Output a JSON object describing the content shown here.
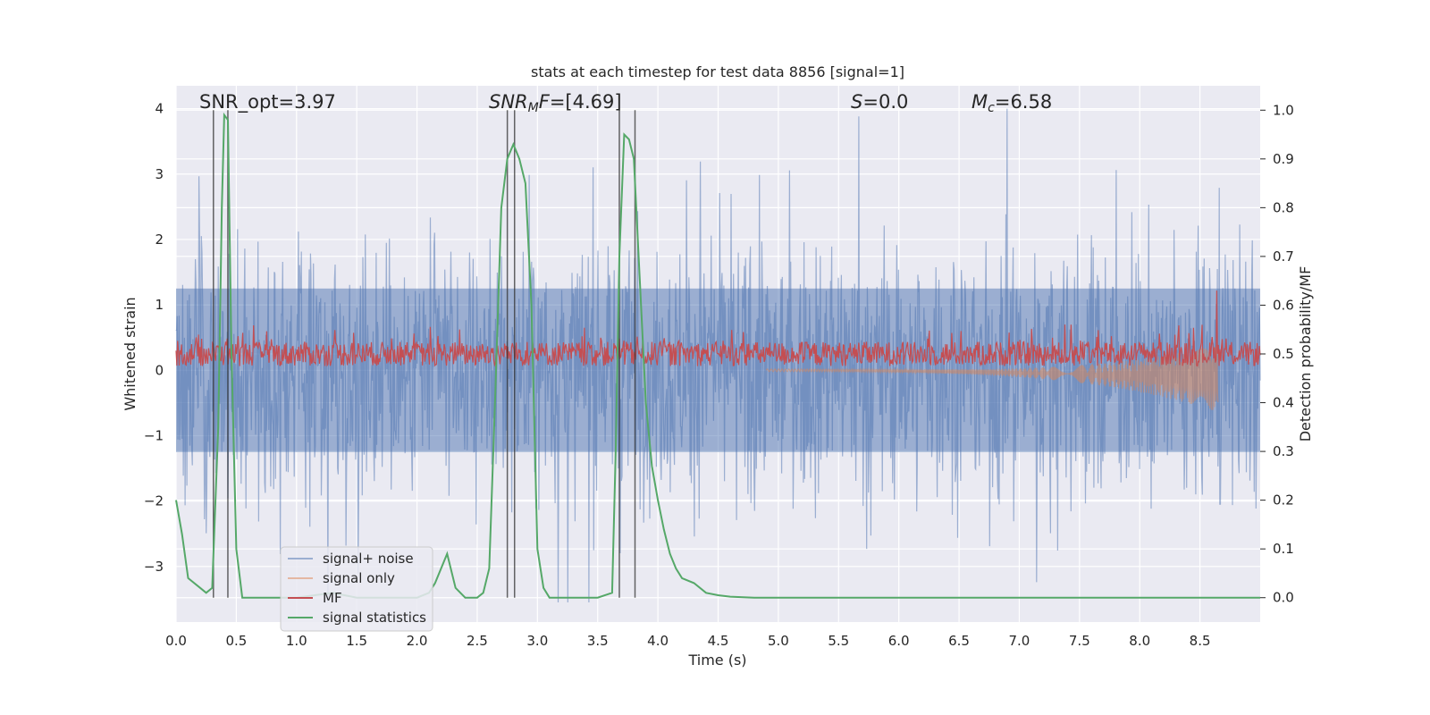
{
  "chart_data": {
    "type": "line",
    "title": "stats at each timestep for test data 8856 [signal=1]",
    "xlabel": "Time (s)",
    "ylabel_left": "Whitened strain",
    "ylabel_right": "Detection probability/MF",
    "xlim": [
      0.0,
      9.0
    ],
    "ylim_left": [
      -3.85,
      4.35
    ],
    "ylim_right": [
      -0.05,
      1.05
    ],
    "xticks": [
      "0.0",
      "0.5",
      "1.0",
      "1.5",
      "2.0",
      "2.5",
      "3.0",
      "3.5",
      "4.0",
      "4.5",
      "5.0",
      "5.5",
      "6.0",
      "6.5",
      "7.0",
      "7.5",
      "8.0",
      "8.5"
    ],
    "yticks_left": [
      "4",
      "3",
      "2",
      "1",
      "0",
      "−1",
      "−2",
      "−3"
    ],
    "yticks_right": [
      "1.0",
      "0.9",
      "0.8",
      "0.7",
      "0.6",
      "0.5",
      "0.4",
      "0.3",
      "0.2",
      "0.1",
      "0.0"
    ],
    "grid": true,
    "legend_position": "lower-left",
    "annotations": [
      {
        "prefix": "SNR_opt=",
        "value": "3.97"
      },
      {
        "prefix": "SNR",
        "sub": "M",
        "suffix": "F=",
        "value": "[4.69]"
      },
      {
        "prefix": "S",
        "suffix": "=",
        "value": "0.0"
      },
      {
        "prefix": "M",
        "sub": "c",
        "suffix": "=",
        "value": "6.58"
      }
    ],
    "vertical_lines_x": [
      0.31,
      0.43,
      2.75,
      2.81,
      3.68,
      3.81
    ],
    "series": [
      {
        "name": "signal+ noise",
        "color": "#4c72b0",
        "axis": "left",
        "style": "noise band, peaks up to ~4.0, down to ~-3.5"
      },
      {
        "name": "signal only",
        "color": "#dd8452",
        "axis": "left",
        "style": "chirp from ~5.0 s growing to ~±0.5 at 8.65 s"
      },
      {
        "name": "MF",
        "color": "#c44e52",
        "axis": "right",
        "baseline": 0.5,
        "max": 0.63
      },
      {
        "name": "signal statistics",
        "color": "#55a868",
        "axis": "right",
        "x": [
          0.0,
          0.05,
          0.1,
          0.2,
          0.25,
          0.3,
          0.35,
          0.38,
          0.4,
          0.43,
          0.46,
          0.5,
          0.55,
          0.6,
          1.0,
          1.3,
          1.5,
          1.7,
          2.0,
          2.1,
          2.15,
          2.25,
          2.32,
          2.4,
          2.5,
          2.55,
          2.6,
          2.65,
          2.7,
          2.75,
          2.8,
          2.85,
          2.9,
          2.95,
          3.0,
          3.05,
          3.1,
          3.2,
          3.5,
          3.62,
          3.65,
          3.68,
          3.72,
          3.76,
          3.8,
          3.85,
          3.9,
          3.95,
          4.0,
          4.05,
          4.1,
          4.15,
          4.2,
          4.3,
          4.4,
          4.5,
          4.6,
          4.8,
          5.0,
          9.0
        ],
        "values": [
          0.2,
          0.13,
          0.04,
          0.02,
          0.01,
          0.02,
          0.35,
          0.8,
          0.99,
          0.98,
          0.5,
          0.1,
          0.0,
          0.0,
          0.0,
          0.01,
          0.0,
          0.0,
          0.0,
          0.01,
          0.03,
          0.09,
          0.02,
          0.0,
          0.0,
          0.01,
          0.06,
          0.42,
          0.8,
          0.9,
          0.93,
          0.9,
          0.85,
          0.6,
          0.1,
          0.02,
          0.0,
          0.0,
          0.0,
          0.01,
          0.3,
          0.7,
          0.95,
          0.94,
          0.9,
          0.65,
          0.4,
          0.27,
          0.2,
          0.14,
          0.09,
          0.06,
          0.04,
          0.03,
          0.01,
          0.005,
          0.002,
          0.0,
          0.0,
          0.0
        ]
      }
    ]
  }
}
